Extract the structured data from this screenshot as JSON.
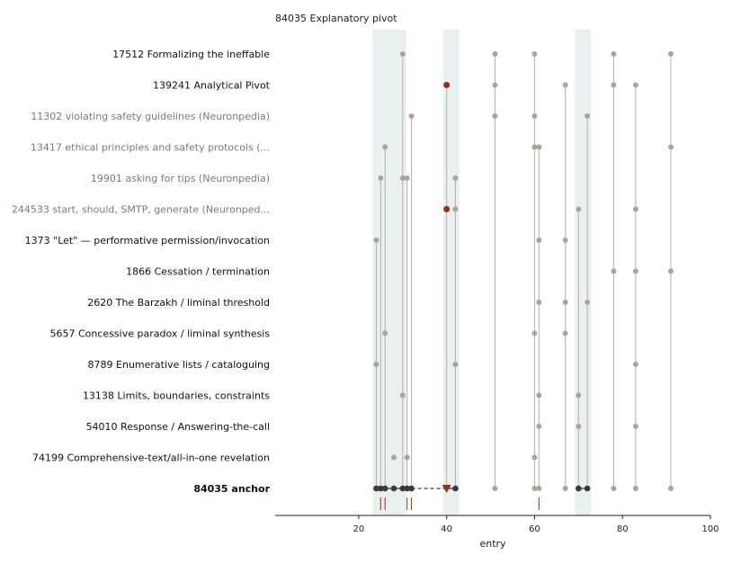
{
  "chart_data": {
    "type": "scatter",
    "title": "84035  Explanatory pivot",
    "xlabel": "entry",
    "xlim": [
      1,
      100
    ],
    "xticks": [
      20,
      40,
      60,
      80,
      100
    ],
    "highlight_bands": [
      [
        24,
        30
      ],
      [
        40,
        42
      ],
      [
        70,
        72
      ]
    ],
    "rows": [
      {
        "label": "17512  Formalizing the ineffable",
        "style": "normal",
        "points": [
          30,
          51,
          60,
          78,
          91
        ],
        "red_points": []
      },
      {
        "label": "139241  Analytical Pivot",
        "style": "normal",
        "points": [
          51,
          67,
          78,
          83
        ],
        "red_points": [
          40
        ]
      },
      {
        "label": "11302  violating safety guidelines (Neuronpedia)",
        "style": "muted",
        "points": [
          32,
          51,
          60,
          72
        ],
        "red_points": []
      },
      {
        "label": "13417  ethical principles and safety protocols (...",
        "style": "muted",
        "points": [
          26,
          60,
          61,
          91
        ],
        "red_points": []
      },
      {
        "label": "19901  asking for tips (Neuronpedia)",
        "style": "muted",
        "points": [
          25,
          30,
          31,
          42
        ],
        "red_points": []
      },
      {
        "label": "244533  start, should, SMTP, generate (Neuronped...",
        "style": "muted",
        "points": [
          42,
          70,
          83
        ],
        "red_points": [
          40
        ]
      },
      {
        "label": "1373  \"Let\" — performative permission/invocation",
        "style": "normal",
        "points": [
          24,
          61,
          67
        ],
        "red_points": []
      },
      {
        "label": "1866  Cessation / termination",
        "style": "normal",
        "points": [
          78,
          83,
          91
        ],
        "red_points": []
      },
      {
        "label": "2620  The Barzakh / liminal threshold",
        "style": "normal",
        "points": [
          61,
          67,
          72
        ],
        "red_points": []
      },
      {
        "label": "5657  Concessive paradox / liminal synthesis",
        "style": "normal",
        "points": [
          26,
          60,
          67
        ],
        "red_points": []
      },
      {
        "label": "8789  Enumerative lists / cataloguing",
        "style": "normal",
        "points": [
          24,
          42,
          83
        ],
        "red_points": []
      },
      {
        "label": "13138  Limits, boundaries, constraints",
        "style": "normal",
        "points": [
          30,
          61,
          70
        ],
        "red_points": []
      },
      {
        "label": "54010  Response / Answering-the-call",
        "style": "normal",
        "points": [
          61,
          70,
          83
        ],
        "red_points": []
      },
      {
        "label": "74199  Comprehensive-text/all-in-one revelation",
        "style": "normal",
        "points": [
          28,
          31,
          60
        ],
        "red_points": []
      }
    ],
    "anchor": {
      "label": "84035  anchor",
      "dark_points": [
        24,
        25,
        26,
        28,
        30,
        31,
        32,
        42,
        70,
        72
      ],
      "gray_points": [
        51,
        60,
        61,
        67,
        78,
        83,
        91
      ],
      "marker": 40
    },
    "rug_ticks": [
      25,
      26,
      31,
      32,
      61
    ],
    "vertical_stems": [
      {
        "x": 24,
        "top_row": 6
      },
      {
        "x": 25,
        "top_row": 4
      },
      {
        "x": 26,
        "top_row": 3
      },
      {
        "x": 30,
        "top_row": 0
      },
      {
        "x": 31,
        "top_row": 4
      },
      {
        "x": 32,
        "top_row": 2
      },
      {
        "x": 40,
        "top_row": 1
      },
      {
        "x": 42,
        "top_row": 4
      },
      {
        "x": 51,
        "top_row": 0
      },
      {
        "x": 60,
        "top_row": 0
      },
      {
        "x": 61,
        "top_row": 3
      },
      {
        "x": 67,
        "top_row": 1
      },
      {
        "x": 70,
        "top_row": 5
      },
      {
        "x": 72,
        "top_row": 2
      },
      {
        "x": 78,
        "top_row": 0
      },
      {
        "x": 83,
        "top_row": 1
      },
      {
        "x": 91,
        "top_row": 0
      }
    ],
    "colors": {
      "band": "#e9f0f0",
      "point": "#aaa59c",
      "stem": "#b5b0a8",
      "dark": "#3a3a3a",
      "red": "#9b2b1a",
      "label": "#111111",
      "muted_label": "#7d7a75"
    }
  }
}
